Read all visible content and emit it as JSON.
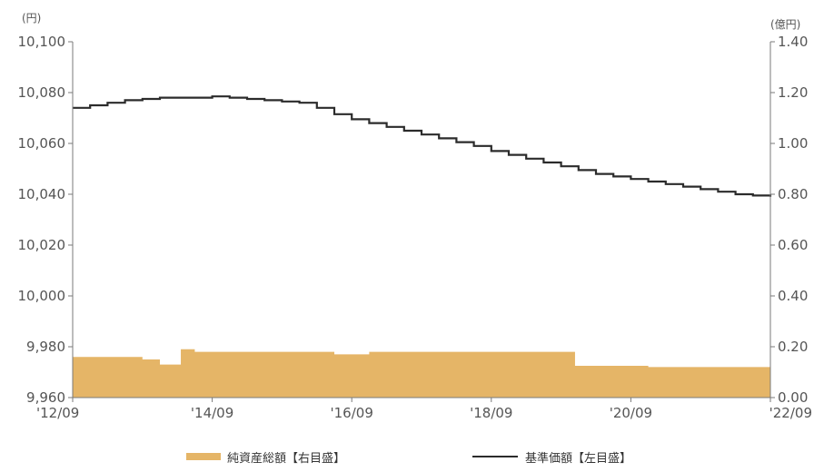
{
  "chart_data": {
    "type": "bar+line",
    "title": "",
    "left_axis": {
      "unit": "(円)",
      "ticks": [
        "10,100",
        "10,080",
        "10,060",
        "10,040",
        "10,020",
        "10,000",
        "9,980",
        "9,960"
      ],
      "tick_values": [
        10100,
        10080,
        10060,
        10040,
        10020,
        10000,
        9980,
        9960
      ],
      "ylim": [
        9960,
        10100
      ]
    },
    "right_axis": {
      "unit": "(億円)",
      "ticks": [
        "1.40",
        "1.20",
        "1.00",
        "0.80",
        "0.60",
        "0.40",
        "0.20",
        "0.00"
      ],
      "tick_values": [
        1.4,
        1.2,
        1.0,
        0.8,
        0.6,
        0.4,
        0.2,
        0.0
      ],
      "ylim": [
        0,
        1.4
      ]
    },
    "x_axis": {
      "ticks": [
        "'12/09",
        "'14/09",
        "'16/09",
        "'18/09",
        "'20/09",
        "'22/09"
      ],
      "tick_years": [
        2012.75,
        2014.75,
        2016.75,
        2018.75,
        2020.75,
        2022.75
      ],
      "xlim": [
        2012.75,
        2022.75
      ]
    },
    "series": [
      {
        "name": "純資産総額【右目盛】",
        "type": "area",
        "axis": "right",
        "color": "#E5B567",
        "x": [
          2012.75,
          2013.5,
          2013.75,
          2013.8,
          2014.0,
          2014.1,
          2014.3,
          2014.4,
          2014.5,
          2014.75,
          2015.0,
          2016.0,
          2016.5,
          2017.0,
          2018.0,
          2019.0,
          2019.9,
          2019.95,
          2020.5,
          2021.0,
          2022.0,
          2022.75
        ],
        "values": [
          0.16,
          0.16,
          0.15,
          0.15,
          0.13,
          0.13,
          0.19,
          0.19,
          0.18,
          0.18,
          0.18,
          0.18,
          0.17,
          0.18,
          0.18,
          0.18,
          0.18,
          0.125,
          0.125,
          0.12,
          0.12,
          0.12
        ]
      },
      {
        "name": "基準価額【左目盛】",
        "type": "line",
        "axis": "left",
        "color": "#2B2B2B",
        "x": [
          2012.75,
          2013.0,
          2013.25,
          2013.5,
          2013.75,
          2014.0,
          2014.25,
          2014.5,
          2014.75,
          2015.0,
          2015.25,
          2015.5,
          2015.75,
          2016.0,
          2016.25,
          2016.5,
          2016.75,
          2017.0,
          2017.25,
          2017.5,
          2017.75,
          2018.0,
          2018.25,
          2018.5,
          2018.75,
          2019.0,
          2019.25,
          2019.5,
          2019.75,
          2020.0,
          2020.25,
          2020.5,
          2020.75,
          2021.0,
          2021.25,
          2021.5,
          2021.75,
          2022.0,
          2022.25,
          2022.5,
          2022.75
        ],
        "values": [
          10074,
          10075,
          10076,
          10077,
          10077.5,
          10078,
          10078,
          10078,
          10078.5,
          10078,
          10077.5,
          10077,
          10076.5,
          10076,
          10074,
          10071.5,
          10069.5,
          10068,
          10066.5,
          10065,
          10063.5,
          10062,
          10060.5,
          10059,
          10057,
          10055.5,
          10054,
          10052.5,
          10051,
          10049.5,
          10048,
          10047,
          10046,
          10045,
          10044,
          10043,
          10042,
          10041,
          10040,
          10039.5,
          10039
        ]
      }
    ],
    "legend": {
      "placement": "bottom",
      "items": [
        {
          "label": "純資産総額【右目盛】",
          "marker": "bar",
          "color": "#E5B567"
        },
        {
          "label": "基準価額【左目盛】",
          "marker": "line",
          "color": "#2B2B2B"
        }
      ]
    },
    "grid": false
  }
}
